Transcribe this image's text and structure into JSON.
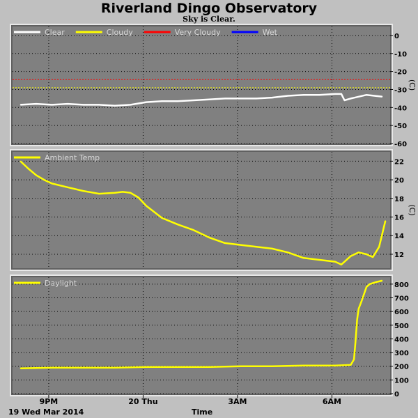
{
  "title": "Riverland Dingo Observatory",
  "subtitle": "Sky is Clear.",
  "date_label": "19 Wed Mar 2014",
  "x_axis_label": "Time",
  "x_ticks": [
    {
      "label": "9PM",
      "x": 0.9
    },
    {
      "label": "20 Thu",
      "x": 3.9
    },
    {
      "label": "3AM",
      "x": 6.9
    },
    {
      "label": "6AM",
      "x": 9.9
    }
  ],
  "x_range": [
    -0.25,
    11.75
  ],
  "chart_data": [
    {
      "type": "line",
      "name": "sky",
      "unit": "(C)",
      "ylim": [
        -60,
        5
      ],
      "yticks": [
        0,
        -10,
        -20,
        -30,
        -40,
        -50,
        -60
      ],
      "grid": true,
      "legend": [
        {
          "label": "Clear",
          "color": "#ffffff"
        },
        {
          "label": "Cloudy",
          "color": "#ffff00"
        },
        {
          "label": "Very Cloudy",
          "color": "#ff0000"
        },
        {
          "label": "Wet",
          "color": "#0000ff"
        }
      ],
      "thresholds": [
        {
          "value": -24.5,
          "color": "#ff0000"
        },
        {
          "value": -29,
          "color": "#ffff00"
        }
      ],
      "series": [
        {
          "label": "Clear",
          "color": "#ffffff",
          "x": [
            0,
            0.5,
            1,
            1.5,
            2,
            2.5,
            3,
            3.5,
            4,
            4.5,
            5,
            5.5,
            6,
            6.5,
            7,
            7.5,
            8,
            8.5,
            9,
            9.5,
            10,
            10.2,
            10.3,
            10.5,
            11,
            11.5
          ],
          "y": [
            -38.5,
            -38,
            -38.5,
            -38,
            -38.5,
            -38.5,
            -39,
            -38.5,
            -37,
            -36.5,
            -36.5,
            -36,
            -35.5,
            -35,
            -35,
            -35,
            -34.5,
            -33.5,
            -33,
            -33,
            -32.5,
            -32.5,
            -36,
            -35,
            -33,
            -34
          ]
        }
      ]
    },
    {
      "type": "line",
      "name": "ambient",
      "unit": "(C)",
      "ylim": [
        10.5,
        23
      ],
      "yticks": [
        22,
        20,
        18,
        16,
        14,
        12
      ],
      "grid": true,
      "legend": [
        {
          "label": "Ambient Temp",
          "color": "#ffff00"
        }
      ],
      "series": [
        {
          "label": "Ambient Temp",
          "color": "#ffff00",
          "x": [
            0,
            0.25,
            0.5,
            0.75,
            1,
            1.5,
            2,
            2.5,
            3,
            3.25,
            3.5,
            3.75,
            4,
            4.5,
            5,
            5.5,
            6,
            6.5,
            7,
            7.5,
            8,
            8.5,
            9,
            9.5,
            10,
            10.2,
            10.5,
            10.75,
            11,
            11.2,
            11.4,
            11.6
          ],
          "y": [
            22,
            21.2,
            20.5,
            20,
            19.6,
            19.2,
            18.8,
            18.5,
            18.6,
            18.7,
            18.6,
            18.1,
            17.2,
            15.9,
            15.2,
            14.6,
            13.8,
            13.2,
            13,
            12.8,
            12.6,
            12.2,
            11.6,
            11.4,
            11.2,
            10.9,
            11.8,
            12.2,
            12,
            11.7,
            12.8,
            15.6
          ]
        }
      ]
    },
    {
      "type": "line",
      "name": "daylight",
      "unit": "",
      "ylim": [
        0,
        850
      ],
      "yticks": [
        800,
        700,
        600,
        500,
        400,
        300,
        200,
        100,
        0
      ],
      "grid": true,
      "legend": [
        {
          "label": "Daylight",
          "color": "#ffff00"
        }
      ],
      "series": [
        {
          "label": "Daylight",
          "color": "#ffff00",
          "x": [
            0,
            1,
            2,
            3,
            4,
            5,
            6,
            7,
            8,
            9,
            10,
            10.5,
            10.6,
            10.65,
            10.7,
            10.75,
            10.85,
            11,
            11.1,
            11.3,
            11.5
          ],
          "y": [
            185,
            190,
            190,
            190,
            195,
            195,
            195,
            200,
            200,
            205,
            205,
            210,
            250,
            380,
            540,
            620,
            680,
            780,
            800,
            815,
            825
          ]
        }
      ]
    }
  ]
}
